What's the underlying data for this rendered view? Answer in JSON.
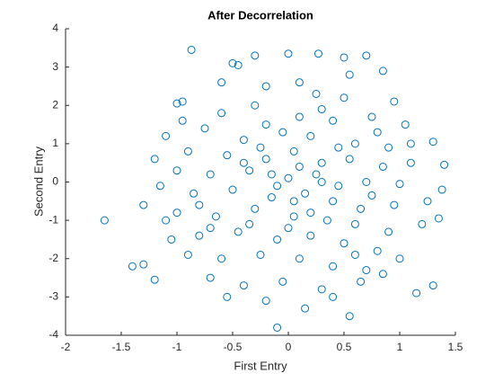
{
  "chart_data": {
    "type": "scatter",
    "title": "After Decorrelation",
    "x_label": "First Entry",
    "y_label": "Second Entry",
    "color": "#0072bd",
    "xlim": [
      -2,
      1.5
    ],
    "xticks": [
      -2,
      -1.5,
      -1,
      -0.5,
      0,
      0.5,
      1,
      1.5
    ],
    "ylim": [
      -4,
      4
    ],
    "yticks": [
      -4,
      -3,
      -2,
      -1,
      0,
      1,
      2,
      3,
      4
    ],
    "x": [
      -1.65,
      -1.4,
      -1.3,
      -0.87,
      0.0,
      0.27,
      -0.1,
      0.55,
      1.38,
      1.35,
      1.3,
      1.15,
      1.3,
      -1.2,
      -1.05,
      -1.15,
      1.4,
      -0.5,
      -0.45,
      -0.3,
      0.5,
      0.7,
      0.55,
      0.85,
      -0.6,
      -1.0,
      -0.95,
      -0.3,
      0.25,
      0.95,
      -0.2,
      0.1,
      0.4,
      0.75,
      -0.75,
      -1.1,
      -0.4,
      0.2,
      0.6,
      0.9,
      1.1,
      -0.9,
      -0.55,
      -0.2,
      0.05,
      0.3,
      0.55,
      0.85,
      -1.0,
      -0.7,
      -0.35,
      0.0,
      0.25,
      0.45,
      0.7,
      1.0,
      -0.85,
      -0.5,
      -0.15,
      0.15,
      0.4,
      0.65,
      0.95,
      -1.0,
      -0.65,
      -0.3,
      0.05,
      0.35,
      0.6,
      0.9,
      1.2,
      -0.8,
      -0.45,
      -0.1,
      0.2,
      0.5,
      0.8,
      -0.9,
      -0.6,
      -0.25,
      0.1,
      0.4,
      0.7,
      1.0,
      -0.7,
      -0.4,
      -0.05,
      0.3,
      0.65,
      0.85,
      -0.2,
      0.15,
      -0.55,
      0.4,
      -0.1,
      0.1,
      -0.25,
      0.3,
      -0.6,
      0.5,
      -0.8,
      0.75,
      1.1,
      -1.2,
      1.25,
      -0.05,
      0.6,
      -0.35,
      0.05,
      -0.15,
      0.2,
      -0.4,
      0.45,
      -0.7,
      0.8,
      -0.2,
      0.1,
      -1.3,
      -1.1,
      1.05,
      -0.95,
      0.0,
      0.3
    ],
    "y": [
      -1.0,
      -2.2,
      -2.15,
      3.45,
      3.35,
      3.35,
      -3.8,
      -3.5,
      -0.2,
      -0.95,
      1.05,
      -2.9,
      -2.7,
      -2.55,
      -1.5,
      -0.1,
      0.45,
      3.1,
      3.05,
      3.3,
      3.25,
      3.3,
      2.8,
      2.9,
      2.6,
      2.05,
      2.1,
      2.0,
      2.3,
      2.1,
      1.5,
      1.7,
      1.6,
      1.7,
      1.4,
      1.2,
      1.1,
      1.2,
      1.0,
      0.9,
      1.0,
      0.8,
      0.7,
      0.6,
      0.8,
      0.5,
      0.6,
      0.4,
      0.3,
      0.2,
      0.3,
      0.1,
      0.2,
      -0.1,
      0.0,
      -0.05,
      -0.3,
      -0.2,
      -0.4,
      -0.3,
      -0.5,
      -0.7,
      -0.6,
      -0.8,
      -0.9,
      -0.7,
      -0.9,
      -1.0,
      -1.1,
      -1.3,
      -1.1,
      -1.4,
      -1.3,
      -1.5,
      -1.4,
      -1.6,
      -1.8,
      -1.9,
      -2.0,
      -1.9,
      -2.0,
      -2.2,
      -2.3,
      -2.0,
      -2.5,
      -2.7,
      -2.6,
      -2.8,
      -2.6,
      -2.4,
      -3.1,
      -3.3,
      -3.0,
      -3.0,
      -0.1,
      0.4,
      0.9,
      1.9,
      1.8,
      2.2,
      -0.6,
      -0.35,
      0.5,
      0.6,
      -0.5,
      1.3,
      -1.9,
      -1.1,
      -0.5,
      0.2,
      -0.8,
      0.5,
      0.9,
      -1.2,
      1.3,
      2.5,
      2.6,
      -0.6,
      -1.0,
      1.5,
      1.6,
      -1.2,
      0.0
    ]
  }
}
